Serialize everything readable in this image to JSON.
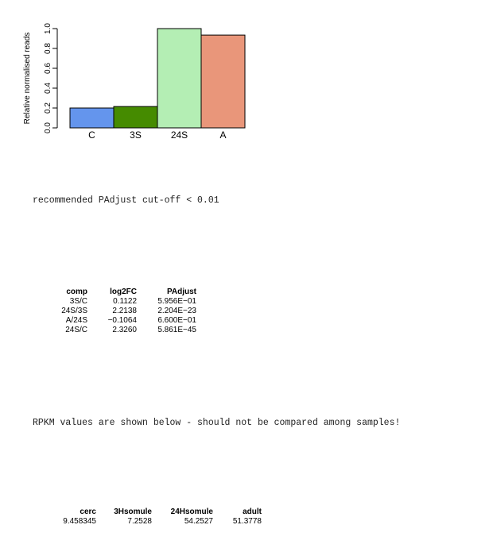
{
  "chart_data": {
    "type": "bar",
    "categories": [
      "C",
      "3S",
      "24S",
      "A"
    ],
    "values": [
      0.2,
      0.215,
      1.0,
      0.935
    ],
    "colors": [
      "#6495ed",
      "#458b00",
      "#b4eeb4",
      "#e9967a"
    ],
    "ylabel": "Relative normalised reads",
    "ylim": [
      0,
      1
    ],
    "yticks": [
      "0.0",
      "0.2",
      "0.4",
      "0.6",
      "0.8",
      "1.0"
    ],
    "grid": false
  },
  "cutoff_text": "recommended PAdjust cut-off < 0.01",
  "comparison_table": {
    "headers": [
      "comp",
      "log2FC",
      "PAdjust"
    ],
    "rows": [
      [
        "3S/C",
        "0.1122",
        "5.956E−01"
      ],
      [
        "24S/3S",
        "2.2138",
        "2.204E−23"
      ],
      [
        "A/24S",
        "−0.1064",
        "6.600E−01"
      ],
      [
        "24S/C",
        "2.3260",
        "5.861E−45"
      ]
    ]
  },
  "rpkm_text": "RPKM values are shown below - should not be compared among samples!",
  "rpkm_table": {
    "headers": [
      "cerc",
      "3Hsomule",
      "24Hsomule",
      "adult"
    ],
    "values": [
      "9.458345",
      "7.2528",
      "54.2527",
      "51.3778"
    ]
  }
}
